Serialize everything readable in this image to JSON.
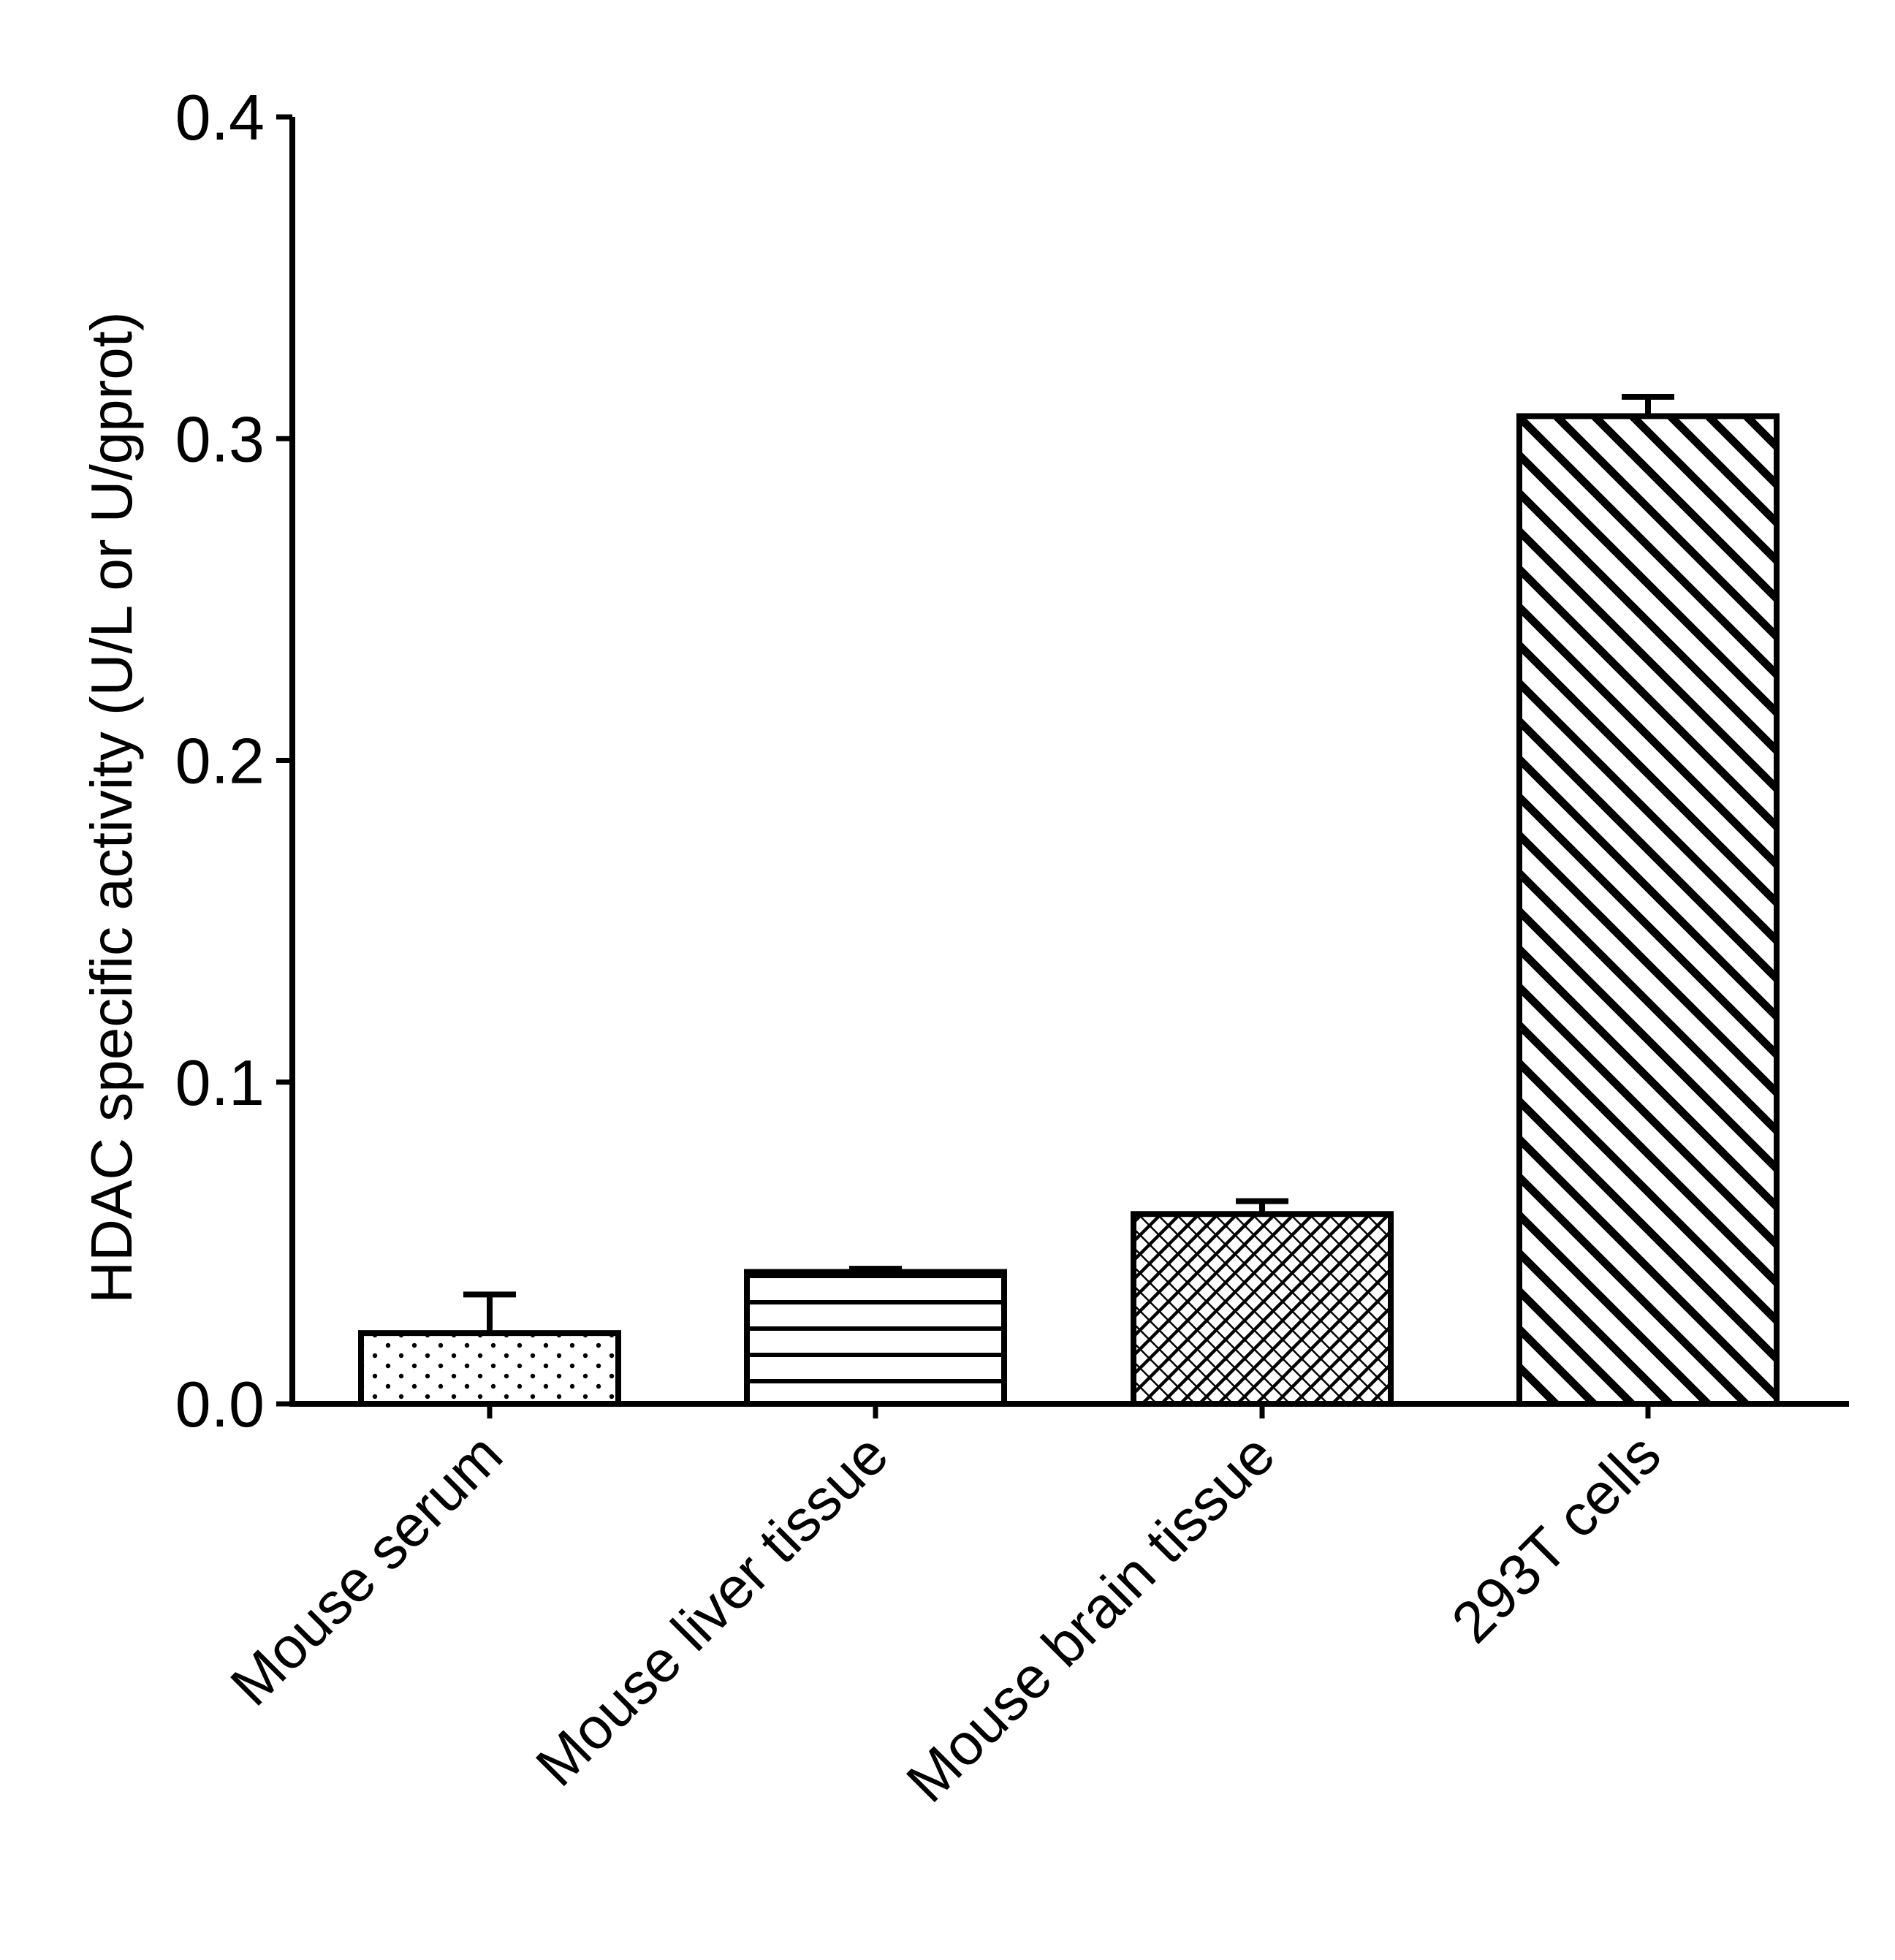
{
  "chart_data": {
    "type": "bar",
    "title": "",
    "xlabel": "",
    "ylabel": "HDAC specific activity (U/L or U/gprot)",
    "ylim": [
      0,
      0.4
    ],
    "yticks": [
      0.0,
      0.1,
      0.2,
      0.3,
      0.4
    ],
    "ytick_labels": [
      "0.0",
      "0.1",
      "0.2",
      "0.3",
      "0.4"
    ],
    "grid": false,
    "categories": [
      "Mouse serum",
      "Mouse liver tissue",
      "Mouse brain tissue",
      "293T cells"
    ],
    "values": [
      0.022,
      0.041,
      0.059,
      0.307
    ],
    "errors": [
      0.012,
      0.001,
      0.004,
      0.006
    ],
    "patterns": [
      "dots",
      "horizontal-lines",
      "crosshatch",
      "diagonal-stripes"
    ],
    "colors": {
      "stroke": "#000000",
      "fill": "#ffffff"
    }
  }
}
